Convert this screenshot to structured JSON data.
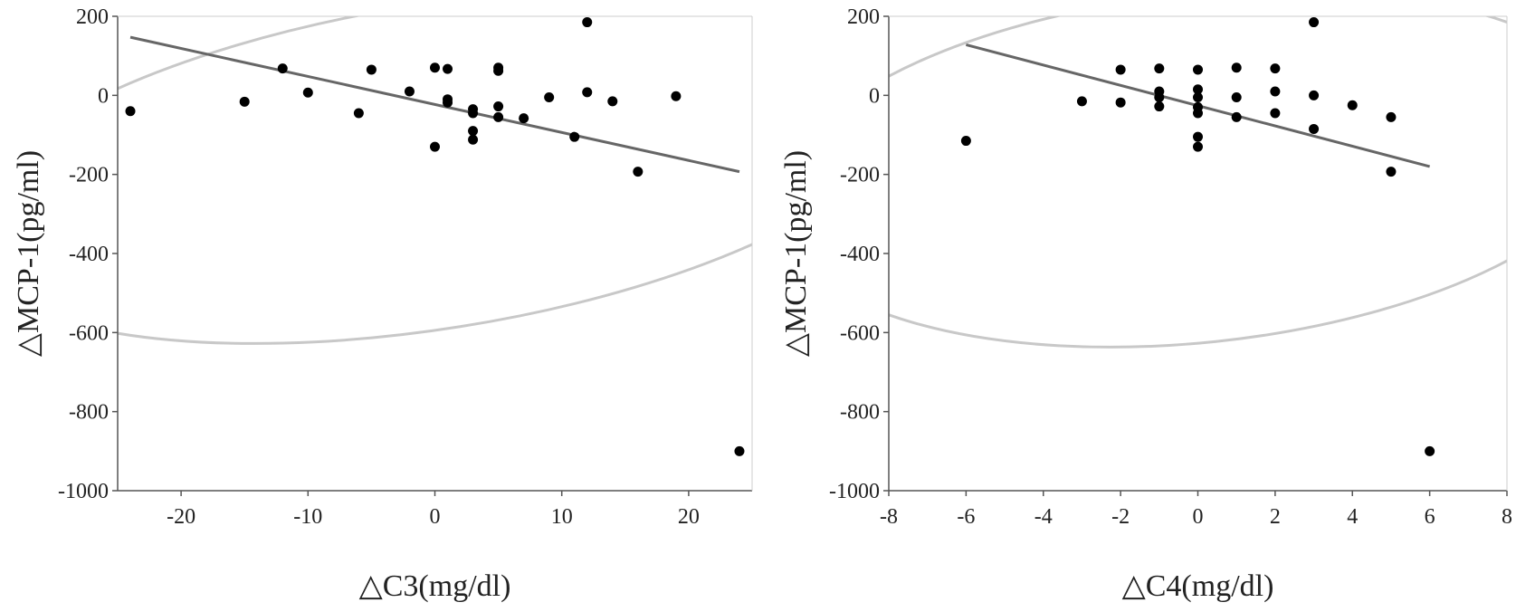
{
  "chart_data": [
    {
      "type": "scatter",
      "xlabel": "△C3(mg/dl)",
      "ylabel": "△MCP-1(pg/ml)",
      "xlim": [
        -25,
        25
      ],
      "ylim": [
        -1000,
        200
      ],
      "xticks": [
        -20,
        -10,
        0,
        10,
        20
      ],
      "yticks": [
        200,
        0,
        -200,
        -400,
        -600,
        -800,
        -1000
      ],
      "grid": false,
      "colors": {
        "points": "#000000",
        "fit_line": "#666666",
        "ellipse": "#c8c8c8"
      },
      "points": [
        [
          -24,
          -40
        ],
        [
          -15,
          -16
        ],
        [
          -12,
          68
        ],
        [
          -10,
          7
        ],
        [
          -6,
          -45
        ],
        [
          -5,
          65
        ],
        [
          -2,
          10
        ],
        [
          0,
          70
        ],
        [
          0,
          -130
        ],
        [
          1,
          67
        ],
        [
          1,
          -10
        ],
        [
          1,
          -18
        ],
        [
          3,
          -35
        ],
        [
          3,
          -45
        ],
        [
          3,
          -90
        ],
        [
          3,
          -112
        ],
        [
          5,
          70
        ],
        [
          5,
          62
        ],
        [
          5,
          -28
        ],
        [
          5,
          -55
        ],
        [
          7,
          -58
        ],
        [
          9,
          -5
        ],
        [
          11,
          -105
        ],
        [
          12,
          185
        ],
        [
          12,
          8
        ],
        [
          14,
          -15
        ],
        [
          16,
          -193
        ],
        [
          19,
          -2
        ],
        [
          24,
          -900
        ]
      ],
      "fit_line": {
        "x": [
          -24,
          24
        ],
        "y": [
          147,
          -193
        ]
      },
      "ellipse": {
        "cx": 0,
        "cy": -180,
        "rx": 38,
        "ry": 410,
        "rotation_deg": -9
      }
    },
    {
      "type": "scatter",
      "xlabel": "△C4(mg/dl)",
      "ylabel": "△MCP-1(pg/ml)",
      "xlim": [
        -8,
        8
      ],
      "ylim": [
        -1000,
        200
      ],
      "xticks": [
        -8,
        -6,
        -4,
        -2,
        0,
        2,
        4,
        6,
        8
      ],
      "yticks": [
        200,
        0,
        -200,
        -400,
        -600,
        -800,
        -1000
      ],
      "grid": false,
      "colors": {
        "points": "#000000",
        "fit_line": "#666666",
        "ellipse": "#c8c8c8"
      },
      "points": [
        [
          -6,
          -115
        ],
        [
          -3,
          -15
        ],
        [
          -2,
          65
        ],
        [
          -2,
          -18
        ],
        [
          -1,
          68
        ],
        [
          -1,
          10
        ],
        [
          -1,
          -5
        ],
        [
          -1,
          -28
        ],
        [
          0,
          65
        ],
        [
          0,
          15
        ],
        [
          0,
          -5
        ],
        [
          0,
          -30
        ],
        [
          0,
          -45
        ],
        [
          0,
          -105
        ],
        [
          0,
          -130
        ],
        [
          1,
          70
        ],
        [
          1,
          -5
        ],
        [
          1,
          -55
        ],
        [
          2,
          68
        ],
        [
          2,
          10
        ],
        [
          2,
          -45
        ],
        [
          3,
          185
        ],
        [
          3,
          0
        ],
        [
          3,
          -85
        ],
        [
          4,
          -25
        ],
        [
          5,
          -55
        ],
        [
          5,
          -193
        ],
        [
          6,
          -900
        ]
      ],
      "fit_line": {
        "x": [
          -6,
          6
        ],
        "y": [
          128,
          -180
        ]
      },
      "ellipse": {
        "cx": 0,
        "cy": -185,
        "rx": 11,
        "ry": 440,
        "rotation_deg": -6
      }
    }
  ]
}
